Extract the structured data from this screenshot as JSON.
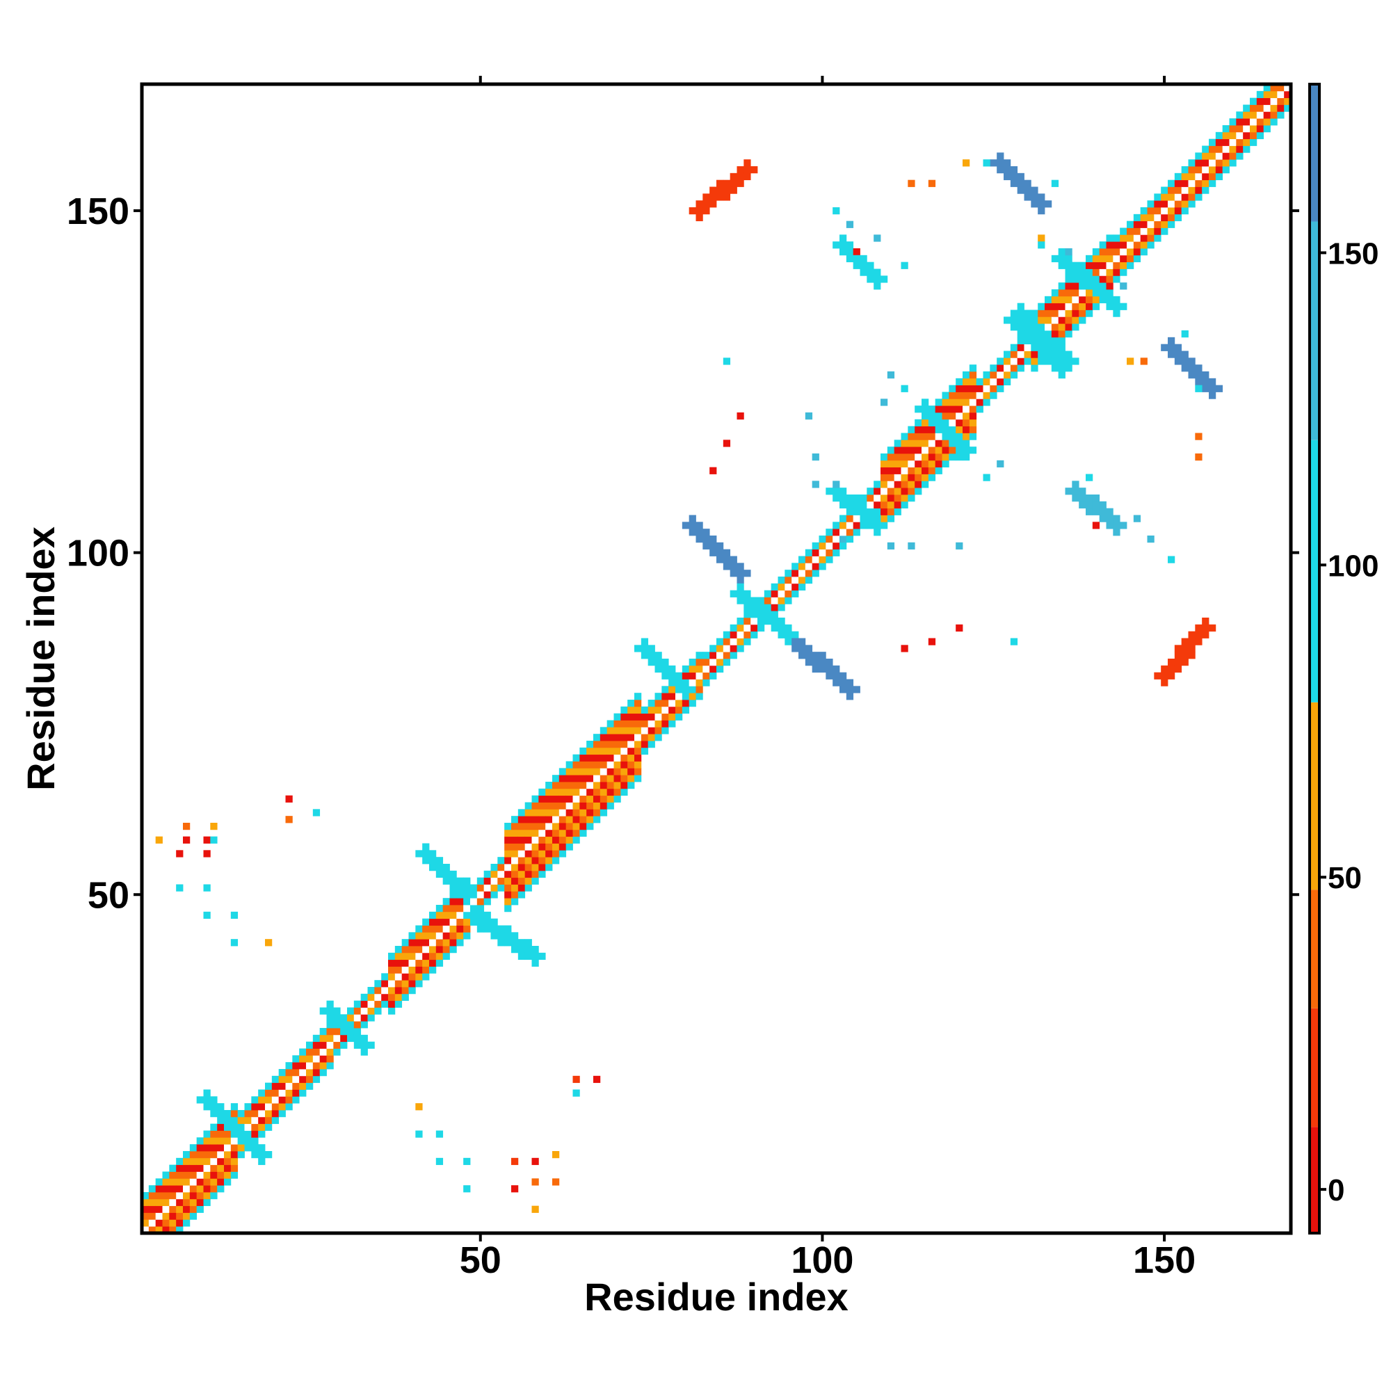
{
  "chart_data": {
    "type": "heatmap",
    "title": "",
    "xlabel": "Residue index",
    "ylabel": "Residue index",
    "xlim": [
      0,
      168
    ],
    "ylim": [
      0,
      168
    ],
    "x_ticks": [
      50,
      100,
      150
    ],
    "y_ticks": [
      50,
      100,
      150
    ],
    "x_tick_labels": [
      "50",
      "100",
      "150"
    ],
    "y_tick_labels": [
      "50",
      "100",
      "150"
    ],
    "grid": false,
    "legend": "colorbar-right",
    "colorbar": {
      "range": [
        -7,
        177
      ],
      "ticks": [
        0,
        50,
        100,
        150
      ],
      "tick_labels": [
        "0",
        "50",
        "100",
        "150"
      ],
      "bands": [
        {
          "from": -7,
          "to": 10,
          "color": "#e8120c"
        },
        {
          "from": 10,
          "to": 29,
          "color": "#f43a0a"
        },
        {
          "from": 29,
          "to": 48,
          "color": "#f86a0a"
        },
        {
          "from": 48,
          "to": 78,
          "color": "#f9a60a"
        },
        {
          "from": 78,
          "to": 120,
          "color": "#1ed8e6"
        },
        {
          "from": 120,
          "to": 155,
          "color": "#3fbad8"
        },
        {
          "from": 155,
          "to": 177,
          "color": "#4a88c3"
        }
      ],
      "top_color": "#ffffff"
    },
    "diagonal_pattern": {
      "center_color": "#ffffff",
      "near_colors": [
        "#f86a0a",
        "#e8120c",
        "#f9a60a"
      ],
      "flank_color": "#1ed8e6"
    },
    "diagonal_widths": [
      {
        "from": 1,
        "to": 14,
        "halfwidth": 5
      },
      {
        "from": 14,
        "to": 28,
        "halfwidth": 3
      },
      {
        "from": 28,
        "to": 36,
        "halfwidth": 2
      },
      {
        "from": 36,
        "to": 48,
        "halfwidth": 4
      },
      {
        "from": 48,
        "to": 53,
        "halfwidth": 2
      },
      {
        "from": 53,
        "to": 73,
        "halfwidth": 6
      },
      {
        "from": 73,
        "to": 82,
        "halfwidth": 3
      },
      {
        "from": 82,
        "to": 90,
        "halfwidth": 2
      },
      {
        "from": 90,
        "to": 108,
        "halfwidth": 2
      },
      {
        "from": 108,
        "to": 122,
        "halfwidth": 5
      },
      {
        "from": 122,
        "to": 130,
        "halfwidth": 2
      },
      {
        "from": 130,
        "to": 142,
        "halfwidth": 4
      },
      {
        "from": 142,
        "to": 168,
        "halfwidth": 3
      }
    ],
    "contact_segments": [
      {
        "x0": 81,
        "y0": 104,
        "x1": 88,
        "y1": 97,
        "w": 3,
        "color": "#4a88c3"
      },
      {
        "x0": 95,
        "y0": 88,
        "x1": 104,
        "y1": 80,
        "w": 3,
        "color": "#4a88c3"
      },
      {
        "x0": 88,
        "y0": 94,
        "x1": 95,
        "y1": 88,
        "w": 3,
        "color": "#1ed8e6"
      },
      {
        "x0": 82,
        "y0": 150,
        "x1": 89,
        "y1": 156,
        "w": 3,
        "color": "#f43a0a"
      },
      {
        "x0": 150,
        "y0": 82,
        "x1": 156,
        "y1": 89,
        "w": 3,
        "color": "#f43a0a"
      },
      {
        "x0": 126,
        "y0": 157,
        "x1": 132,
        "y1": 151,
        "w": 3,
        "color": "#4a88c3"
      },
      {
        "x0": 151,
        "y0": 130,
        "x1": 157,
        "y1": 124,
        "w": 3,
        "color": "#4a88c3"
      },
      {
        "x0": 103,
        "y0": 145,
        "x1": 108,
        "y1": 140,
        "w": 3,
        "color": "#1ed8e6"
      },
      {
        "x0": 137,
        "y0": 109,
        "x1": 143,
        "y1": 104,
        "w": 3,
        "color": "#3fbad8"
      },
      {
        "x0": 129,
        "y0": 134,
        "x1": 135,
        "y1": 128,
        "w": 4,
        "color": "#1ed8e6"
      },
      {
        "x0": 135,
        "y0": 143,
        "x1": 143,
        "y1": 136,
        "w": 3,
        "color": "#1ed8e6"
      },
      {
        "x0": 115,
        "y0": 121,
        "x1": 121,
        "y1": 115,
        "w": 2,
        "color": "#1ed8e6"
      },
      {
        "x0": 102,
        "y0": 109,
        "x1": 108,
        "y1": 104,
        "w": 2,
        "color": "#1ed8e6"
      },
      {
        "x0": 74,
        "y0": 86,
        "x1": 80,
        "y1": 80,
        "w": 2,
        "color": "#1ed8e6"
      },
      {
        "x0": 42,
        "y0": 56,
        "x1": 48,
        "y1": 50,
        "w": 2,
        "color": "#1ed8e6"
      },
      {
        "x0": 49,
        "y0": 47,
        "x1": 58,
        "y1": 41,
        "w": 2,
        "color": "#1ed8e6"
      },
      {
        "x0": 28,
        "y0": 33,
        "x1": 33,
        "y1": 28,
        "w": 2,
        "color": "#1ed8e6"
      },
      {
        "x0": 10,
        "y0": 20,
        "x1": 18,
        "y1": 12,
        "w": 2,
        "color": "#1ed8e6"
      }
    ],
    "contact_points": [
      [
        22,
        64,
        "#e8120c"
      ],
      [
        22,
        61,
        "#f86a0a"
      ],
      [
        26,
        62,
        "#1ed8e6"
      ],
      [
        3,
        58,
        "#f9a60a"
      ],
      [
        7,
        58,
        "#e8120c"
      ],
      [
        10,
        58,
        "#e8120c"
      ],
      [
        7,
        60,
        "#f86a0a"
      ],
      [
        11,
        60,
        "#f9a60a"
      ],
      [
        10,
        56,
        "#e8120c"
      ],
      [
        6,
        56,
        "#e8120c"
      ],
      [
        11,
        58,
        "#1ed8e6"
      ],
      [
        6,
        51,
        "#1ed8e6"
      ],
      [
        10,
        51,
        "#1ed8e6"
      ],
      [
        10,
        47,
        "#1ed8e6"
      ],
      [
        14,
        47,
        "#1ed8e6"
      ],
      [
        14,
        43,
        "#1ed8e6"
      ],
      [
        19,
        43,
        "#f9a60a"
      ],
      [
        41,
        19,
        "#f9a60a"
      ],
      [
        41,
        15,
        "#1ed8e6"
      ],
      [
        44,
        15,
        "#1ed8e6"
      ],
      [
        44,
        11,
        "#1ed8e6"
      ],
      [
        48,
        11,
        "#1ed8e6"
      ],
      [
        48,
        7,
        "#1ed8e6"
      ],
      [
        55,
        11,
        "#f43a0a"
      ],
      [
        55,
        7,
        "#e8120c"
      ],
      [
        58,
        11,
        "#e8120c"
      ],
      [
        58,
        8,
        "#f86a0a"
      ],
      [
        61,
        8,
        "#f86a0a"
      ],
      [
        61,
        12,
        "#f9a60a"
      ],
      [
        58,
        4,
        "#f9a60a"
      ],
      [
        64,
        21,
        "#1ed8e6"
      ],
      [
        64,
        23,
        "#f43a0a"
      ],
      [
        67,
        23,
        "#e8120c"
      ],
      [
        86,
        128,
        "#1ed8e6"
      ],
      [
        88,
        120,
        "#e8120c"
      ],
      [
        86,
        116,
        "#e8120c"
      ],
      [
        84,
        112,
        "#e8120c"
      ],
      [
        98,
        120,
        "#3fbad8"
      ],
      [
        99,
        114,
        "#3fbad8"
      ],
      [
        99,
        110,
        "#3fbad8"
      ],
      [
        102,
        110,
        "#3fbad8"
      ],
      [
        103,
        102,
        "#3fbad8"
      ],
      [
        110,
        101,
        "#3fbad8"
      ],
      [
        113,
        101,
        "#3fbad8"
      ],
      [
        120,
        101,
        "#3fbad8"
      ],
      [
        108,
        104,
        "#1ed8e6"
      ],
      [
        112,
        86,
        "#e8120c"
      ],
      [
        116,
        87,
        "#e8120c"
      ],
      [
        120,
        89,
        "#e8120c"
      ],
      [
        128,
        87,
        "#1ed8e6"
      ],
      [
        110,
        126,
        "#3fbad8"
      ],
      [
        112,
        124,
        "#1ed8e6"
      ],
      [
        109,
        122,
        "#3fbad8"
      ],
      [
        120,
        114,
        "#1ed8e6"
      ],
      [
        124,
        111,
        "#1ed8e6"
      ],
      [
        126,
        113,
        "#3fbad8"
      ],
      [
        132,
        146,
        "#f9a60a"
      ],
      [
        132,
        145,
        "#1ed8e6"
      ],
      [
        136,
        144,
        "#3fbad8"
      ],
      [
        102,
        150,
        "#1ed8e6"
      ],
      [
        104,
        148,
        "#3fbad8"
      ],
      [
        108,
        146,
        "#3fbad8"
      ],
      [
        105,
        144,
        "#e8120c"
      ],
      [
        112,
        142,
        "#1ed8e6"
      ],
      [
        108,
        139,
        "#1ed8e6"
      ],
      [
        113,
        154,
        "#f86a0a"
      ],
      [
        116,
        154,
        "#f86a0a"
      ],
      [
        121,
        157,
        "#f9a60a"
      ],
      [
        124,
        157,
        "#1ed8e6"
      ],
      [
        134,
        154,
        "#1ed8e6"
      ],
      [
        144,
        139,
        "#3fbad8"
      ],
      [
        145,
        128,
        "#f9a60a"
      ],
      [
        147,
        128,
        "#f86a0a"
      ],
      [
        153,
        132,
        "#1ed8e6"
      ],
      [
        155,
        124,
        "#1ed8e6"
      ],
      [
        155,
        117,
        "#f86a0a"
      ],
      [
        155,
        114,
        "#f86a0a"
      ],
      [
        146,
        105,
        "#3fbad8"
      ],
      [
        148,
        102,
        "#3fbad8"
      ],
      [
        151,
        99,
        "#1ed8e6"
      ],
      [
        140,
        104,
        "#e8120c"
      ],
      [
        139,
        111,
        "#1ed8e6"
      ]
    ]
  }
}
